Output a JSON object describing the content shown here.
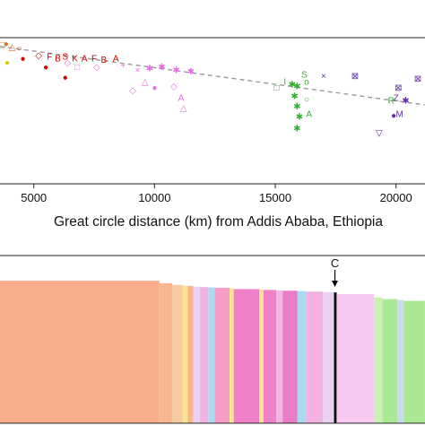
{
  "chart_data": [
    {
      "type": "scatter",
      "xlabel": "Great circle distance (km) from Addis Ababa, Ethiopia",
      "ylabel": "",
      "x_ticks": [
        5000,
        10000,
        15000,
        20000
      ],
      "xlim": [
        3600,
        21200
      ],
      "ylim": [
        0,
        1
      ],
      "grid": false,
      "trendline": {
        "style": "dashed",
        "color": "#9a9a9a",
        "x": [
          3600,
          21200
        ],
        "y": [
          0.94,
          0.54
        ]
      },
      "points": [
        {
          "x": 3700,
          "y": 0.95,
          "mark": "□",
          "color": "#e07020"
        },
        {
          "x": 3850,
          "y": 0.96,
          "mark": "●",
          "color": "#e07020"
        },
        {
          "x": 4100,
          "y": 0.94,
          "mark": "△",
          "color": "#e07020"
        },
        {
          "x": 4400,
          "y": 0.93,
          "mark": "○",
          "color": "#e03020"
        },
        {
          "x": 3900,
          "y": 0.83,
          "mark": "●",
          "color": "#d0d000"
        },
        {
          "x": 4550,
          "y": 0.86,
          "mark": "●",
          "color": "#cc0000"
        },
        {
          "x": 5200,
          "y": 0.88,
          "mark": "◇",
          "color": "#cc0000"
        },
        {
          "x": 5650,
          "y": 0.87,
          "mark": "F",
          "color": "#cc0000"
        },
        {
          "x": 6000,
          "y": 0.86,
          "mark": "B",
          "color": "#cc0000"
        },
        {
          "x": 6300,
          "y": 0.87,
          "mark": "S",
          "color": "#cc0000"
        },
        {
          "x": 6700,
          "y": 0.86,
          "mark": "K",
          "color": "#cc0000"
        },
        {
          "x": 7100,
          "y": 0.86,
          "mark": "A",
          "color": "#cc0000"
        },
        {
          "x": 7500,
          "y": 0.86,
          "mark": "F",
          "color": "#cc0000"
        },
        {
          "x": 7900,
          "y": 0.85,
          "mark": "B",
          "color": "#cc0000"
        },
        {
          "x": 8400,
          "y": 0.86,
          "mark": "A",
          "color": "#cc0000"
        },
        {
          "x": 5500,
          "y": 0.8,
          "mark": "●",
          "color": "#cc0000"
        },
        {
          "x": 6300,
          "y": 0.73,
          "mark": "●",
          "color": "#cc0000"
        },
        {
          "x": 6400,
          "y": 0.83,
          "mark": "◇",
          "color": "#e070e0"
        },
        {
          "x": 6800,
          "y": 0.8,
          "mark": "□",
          "color": "#e070e0"
        },
        {
          "x": 7600,
          "y": 0.8,
          "mark": "◇",
          "color": "#e070e0"
        },
        {
          "x": 8700,
          "y": 0.81,
          "mark": "+",
          "color": "#e070e0"
        },
        {
          "x": 9300,
          "y": 0.78,
          "mark": "×",
          "color": "#e070e0"
        },
        {
          "x": 9800,
          "y": 0.79,
          "mark": "✱",
          "color": "#e070e0"
        },
        {
          "x": 10300,
          "y": 0.8,
          "mark": "✱",
          "color": "#e070e0"
        },
        {
          "x": 10900,
          "y": 0.78,
          "mark": "✱",
          "color": "#e070e0"
        },
        {
          "x": 11500,
          "y": 0.77,
          "mark": "✱",
          "color": "#e070e0"
        },
        {
          "x": 9600,
          "y": 0.7,
          "mark": "△",
          "color": "#e070e0"
        },
        {
          "x": 9100,
          "y": 0.64,
          "mark": "◇",
          "color": "#e070e0"
        },
        {
          "x": 10000,
          "y": 0.66,
          "mark": "●",
          "color": "#e070e0"
        },
        {
          "x": 10800,
          "y": 0.67,
          "mark": "◇",
          "color": "#e070e0"
        },
        {
          "x": 11100,
          "y": 0.59,
          "mark": "A",
          "color": "#e070e0"
        },
        {
          "x": 11200,
          "y": 0.52,
          "mark": "△",
          "color": "#e070e0"
        },
        {
          "x": 15050,
          "y": 0.66,
          "mark": "□",
          "color": "#30b030"
        },
        {
          "x": 15400,
          "y": 0.7,
          "mark": "I",
          "color": "#30b030"
        },
        {
          "x": 15700,
          "y": 0.68,
          "mark": "✱",
          "color": "#30b030"
        },
        {
          "x": 15900,
          "y": 0.67,
          "mark": "✱",
          "color": "#30b030"
        },
        {
          "x": 15800,
          "y": 0.6,
          "mark": "✱",
          "color": "#30b030"
        },
        {
          "x": 15900,
          "y": 0.53,
          "mark": "✱",
          "color": "#30b030"
        },
        {
          "x": 16000,
          "y": 0.46,
          "mark": "✱",
          "color": "#30b030"
        },
        {
          "x": 15900,
          "y": 0.38,
          "mark": "✱",
          "color": "#30b030"
        },
        {
          "x": 16200,
          "y": 0.75,
          "mark": "S",
          "color": "#30b030"
        },
        {
          "x": 16300,
          "y": 0.7,
          "mark": "o",
          "color": "#30b030"
        },
        {
          "x": 16300,
          "y": 0.58,
          "mark": "○",
          "color": "#30b030"
        },
        {
          "x": 16400,
          "y": 0.48,
          "mark": "A",
          "color": "#30b030"
        },
        {
          "x": 17000,
          "y": 0.74,
          "mark": "×",
          "color": "#6030a0"
        },
        {
          "x": 18300,
          "y": 0.74,
          "mark": "⊠",
          "color": "#6030a0"
        },
        {
          "x": 19300,
          "y": 0.35,
          "mark": "▽",
          "color": "#6030a0"
        },
        {
          "x": 19800,
          "y": 0.57,
          "mark": "R",
          "color": "#30b030"
        },
        {
          "x": 20000,
          "y": 0.59,
          "mark": "Z",
          "color": "#6030a0"
        },
        {
          "x": 20100,
          "y": 0.66,
          "mark": "⊠",
          "color": "#6030a0"
        },
        {
          "x": 19900,
          "y": 0.47,
          "mark": "●",
          "color": "#6030a0"
        },
        {
          "x": 20150,
          "y": 0.48,
          "mark": "M",
          "color": "#6030a0"
        },
        {
          "x": 20400,
          "y": 0.57,
          "mark": "✱",
          "color": "#6030a0"
        },
        {
          "x": 20900,
          "y": 0.72,
          "mark": "⊠",
          "color": "#6030a0"
        }
      ]
    },
    {
      "type": "bar",
      "stacked_profile": true,
      "annotation": {
        "label": "C",
        "x": 0.788
      },
      "segments": [
        {
          "end": 0.375,
          "color": "#f9a986",
          "top": 0.85
        },
        {
          "end": 0.405,
          "color": "#f9b48c",
          "top": 0.835
        },
        {
          "end": 0.43,
          "color": "#f6c9a0",
          "top": 0.825
        },
        {
          "end": 0.442,
          "color": "#f6e38c",
          "top": 0.82
        },
        {
          "end": 0.455,
          "color": "#f9b48c",
          "top": 0.818
        },
        {
          "end": 0.47,
          "color": "#e8d0f0",
          "top": 0.815
        },
        {
          "end": 0.49,
          "color": "#f2b0e0",
          "top": 0.812
        },
        {
          "end": 0.505,
          "color": "#a8d8f0",
          "top": 0.81
        },
        {
          "end": 0.54,
          "color": "#f49ac8",
          "top": 0.808
        },
        {
          "end": 0.55,
          "color": "#f6e38c",
          "top": 0.805
        },
        {
          "end": 0.61,
          "color": "#f07cc8",
          "top": 0.8
        },
        {
          "end": 0.62,
          "color": "#f6e38c",
          "top": 0.798
        },
        {
          "end": 0.65,
          "color": "#f07cc8",
          "top": 0.795
        },
        {
          "end": 0.665,
          "color": "#f2b0e0",
          "top": 0.792
        },
        {
          "end": 0.7,
          "color": "#e878c4",
          "top": 0.79
        },
        {
          "end": 0.72,
          "color": "#a8d8f0",
          "top": 0.788
        },
        {
          "end": 0.76,
          "color": "#f2b0e0",
          "top": 0.785
        },
        {
          "end": 0.786,
          "color": "#e8d0f0",
          "top": 0.782
        },
        {
          "end": 0.792,
          "color": "#000000",
          "top": 0.78
        },
        {
          "end": 0.88,
          "color": "#f6c8f0",
          "top": 0.77
        },
        {
          "end": 0.9,
          "color": "#c8f0b0",
          "top": 0.75
        },
        {
          "end": 0.935,
          "color": "#a8e890",
          "top": 0.74
        },
        {
          "end": 0.95,
          "color": "#c8d8f0",
          "top": 0.735
        },
        {
          "end": 1.0,
          "color": "#a8e890",
          "top": 0.73
        }
      ]
    }
  ]
}
